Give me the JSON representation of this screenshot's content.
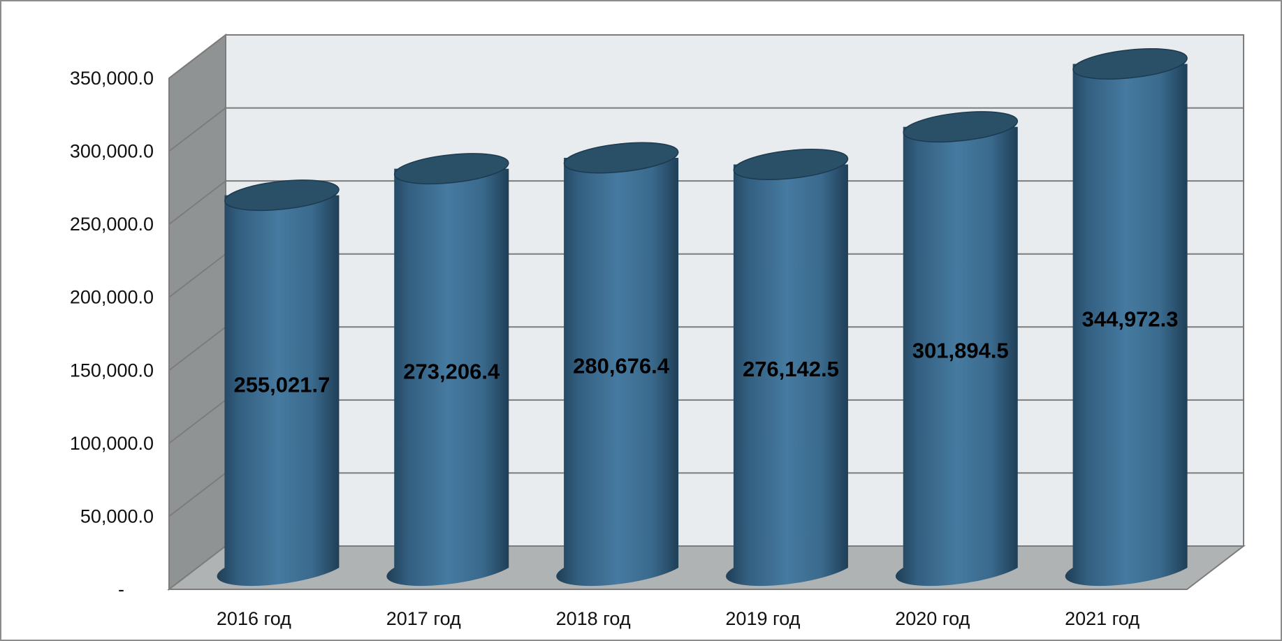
{
  "chart_data": {
    "type": "bar",
    "style": "3d-cylinder",
    "categories": [
      "2016 год",
      "2017 год",
      "2018 год",
      "2019 год",
      "2020 год",
      "2021 год"
    ],
    "values": [
      255021.7,
      273206.4,
      280676.4,
      276142.5,
      301894.5,
      344972.3
    ],
    "value_labels": [
      "255,021.7",
      "273,206.4",
      "280,676.4",
      "276,142.5",
      "301,894.5",
      "344,972.3"
    ],
    "y_ticks": [
      0,
      50000,
      100000,
      150000,
      200000,
      250000,
      300000,
      350000
    ],
    "y_tick_labels": [
      "-",
      "50,000.0",
      "100,000.0",
      "150,000.0",
      "200,000.0",
      "250,000.0",
      "300,000.0",
      "350,000.0"
    ],
    "ylim": [
      0,
      350000
    ],
    "grid": true,
    "legend": "none",
    "title": "",
    "xlabel": "",
    "ylabel": "",
    "colors": {
      "bar": "#3e6f92",
      "bar_dark": "#22465f",
      "bar_light": "#4a7ea4",
      "bar_top": "#2a5068",
      "back_wall": "#e8ecee",
      "side_wall": "#909394",
      "floor": "#b0b3b4",
      "gridline": "#7c7c7c"
    }
  }
}
